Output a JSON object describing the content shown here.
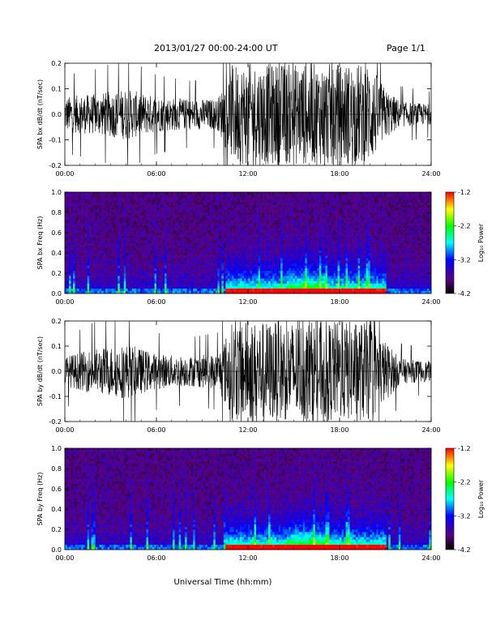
{
  "header": {
    "title": "2013/01/27  00:00-24:00 UT",
    "page": "Page 1/1"
  },
  "x_axis_title": "Universal Time (hh:mm)",
  "colorbar": {
    "label": "Log₁₀ Power",
    "ticks": [
      "-1.2",
      "-2.2",
      "-3.2",
      "-4.2"
    ],
    "range": [
      -4.2,
      -1.2
    ],
    "colormap": [
      "#000000",
      "#5a0080",
      "#0000ff",
      "#00ffff",
      "#00ff00",
      "#ffff00",
      "#ff0000"
    ]
  },
  "chart_data": [
    {
      "type": "line",
      "panel": "bx-timeseries",
      "ylabel": "SPA bx dB/dt (nT/sec)",
      "x_ticks": [
        "00:00",
        "06:00",
        "12:00",
        "18:00",
        "24:00"
      ],
      "y_ticks": [
        "-0.2",
        "-0.1",
        "0.0",
        "0.1",
        "0.2"
      ],
      "xlim": [
        0,
        24
      ],
      "ylim": [
        -0.2,
        0.2
      ],
      "x_hours": [
        0,
        2,
        4,
        6,
        8,
        10,
        11,
        12,
        14,
        16,
        18,
        20,
        21,
        22,
        24
      ],
      "envelope_amplitude": [
        0.07,
        0.08,
        0.1,
        0.07,
        0.06,
        0.06,
        0.2,
        0.2,
        0.2,
        0.2,
        0.2,
        0.2,
        0.1,
        0.05,
        0.04
      ],
      "color": "#000000"
    },
    {
      "type": "heatmap",
      "panel": "bx-spectrogram",
      "ylabel": "SPA bx Freq (Hz)",
      "x_ticks": [
        "00:00",
        "06:00",
        "12:00",
        "18:00",
        "24:00"
      ],
      "y_ticks": [
        "0.0",
        "0.2",
        "0.4",
        "0.6",
        "0.8",
        "1.0"
      ],
      "xlim": [
        0,
        24
      ],
      "ylim": [
        0,
        1.0
      ],
      "zlim": [
        -4.2,
        -1.2
      ]
    },
    {
      "type": "line",
      "panel": "by-timeseries",
      "ylabel": "SPA by dB/dt (nT/sec)",
      "x_ticks": [
        "00:00",
        "06:00",
        "12:00",
        "18:00",
        "24:00"
      ],
      "y_ticks": [
        "-0.2",
        "-0.1",
        "0.0",
        "0.1",
        "0.2"
      ],
      "xlim": [
        0,
        24
      ],
      "ylim": [
        -0.2,
        0.2
      ],
      "x_hours": [
        0,
        2,
        4,
        6,
        8,
        10,
        11,
        12,
        14,
        16,
        18,
        20,
        21,
        22,
        24
      ],
      "envelope_amplitude": [
        0.06,
        0.09,
        0.11,
        0.07,
        0.06,
        0.07,
        0.2,
        0.2,
        0.2,
        0.2,
        0.2,
        0.2,
        0.12,
        0.05,
        0.04
      ],
      "color": "#000000"
    },
    {
      "type": "heatmap",
      "panel": "by-spectrogram",
      "ylabel": "SPA by Freq (Hz)",
      "x_ticks": [
        "00:00",
        "06:00",
        "12:00",
        "18:00",
        "24:00"
      ],
      "y_ticks": [
        "0.0",
        "0.2",
        "0.4",
        "0.6",
        "0.8",
        "1.0"
      ],
      "xlim": [
        0,
        24
      ],
      "ylim": [
        0,
        1.0
      ],
      "zlim": [
        -4.2,
        -1.2
      ]
    }
  ]
}
